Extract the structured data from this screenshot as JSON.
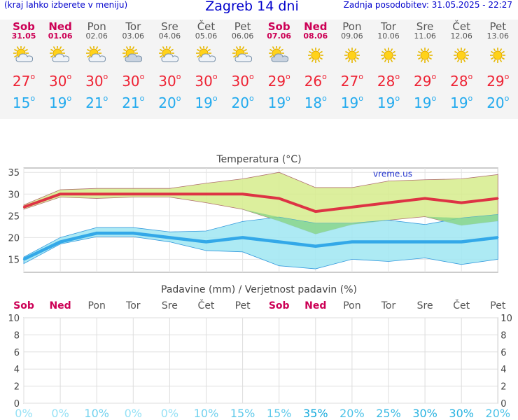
{
  "header": {
    "menu_hint": "(kraj lahko izberete v meniju)",
    "title": "Zagreb 14 dni",
    "updated": "Zadnja posodobitev: 31.05.2025 - 22:27"
  },
  "days": [
    {
      "name": "Sob",
      "date": "31.05",
      "weekend": true,
      "icon": "partly-cloudy-sun-icon",
      "max": "27",
      "min": "15",
      "rain_prob": "0%"
    },
    {
      "name": "Ned",
      "date": "01.06",
      "weekend": true,
      "icon": "partly-cloudy-sun-icon",
      "max": "30",
      "min": "19",
      "rain_prob": "0%"
    },
    {
      "name": "Pon",
      "date": "02.06",
      "weekend": false,
      "icon": "partly-cloudy-sun-icon",
      "max": "30",
      "min": "21",
      "rain_prob": "10%"
    },
    {
      "name": "Tor",
      "date": "03.06",
      "weekend": false,
      "icon": "cloudy-sun-icon",
      "max": "30",
      "min": "21",
      "rain_prob": "0%"
    },
    {
      "name": "Sre",
      "date": "04.06",
      "weekend": false,
      "icon": "partly-cloudy-sun-icon",
      "max": "30",
      "min": "20",
      "rain_prob": "0%"
    },
    {
      "name": "Čet",
      "date": "05.06",
      "weekend": false,
      "icon": "partly-cloudy-sun-icon",
      "max": "30",
      "min": "19",
      "rain_prob": "10%"
    },
    {
      "name": "Pet",
      "date": "06.06",
      "weekend": false,
      "icon": "partly-cloudy-sun-icon",
      "max": "30",
      "min": "20",
      "rain_prob": "15%"
    },
    {
      "name": "Sob",
      "date": "07.06",
      "weekend": true,
      "icon": "cloudy-sun-icon",
      "max": "29",
      "min": "19",
      "rain_prob": "15%"
    },
    {
      "name": "Ned",
      "date": "08.06",
      "weekend": true,
      "icon": "sun-icon",
      "max": "26",
      "min": "18",
      "rain_prob": "35%"
    },
    {
      "name": "Pon",
      "date": "09.06",
      "weekend": false,
      "icon": "sun-icon",
      "max": "27",
      "min": "19",
      "rain_prob": "20%"
    },
    {
      "name": "Tor",
      "date": "10.06",
      "weekend": false,
      "icon": "sun-icon",
      "max": "28",
      "min": "19",
      "rain_prob": "25%"
    },
    {
      "name": "Sre",
      "date": "11.06",
      "weekend": false,
      "icon": "sun-icon",
      "max": "29",
      "min": "19",
      "rain_prob": "30%"
    },
    {
      "name": "Čet",
      "date": "12.06",
      "weekend": false,
      "icon": "sun-icon",
      "max": "28",
      "min": "19",
      "rain_prob": "30%"
    },
    {
      "name": "Pet",
      "date": "13.06",
      "weekend": false,
      "icon": "sun-icon",
      "max": "29",
      "min": "20",
      "rain_prob": "20%"
    }
  ],
  "colors": {
    "title_blue": "#0000cc",
    "weekend": "#cc0055",
    "max_temp": "#ee2233",
    "min_temp": "#22aaee",
    "max_line": "#dd3344",
    "max_band": "#d6ec8c",
    "min_line": "#33a8e8",
    "min_band": "#9fe6f2",
    "overlap": "#88d488"
  },
  "chart_data": [
    {
      "type": "line",
      "title": "Temperatura (°C)",
      "watermark": "vreme.us",
      "ylim": [
        12,
        36
      ],
      "yticks": [
        15,
        20,
        25,
        30,
        35
      ],
      "categories": [
        "31.05",
        "01.06",
        "02.06",
        "03.06",
        "04.06",
        "05.06",
        "06.06",
        "07.06",
        "08.06",
        "09.06",
        "10.06",
        "11.06",
        "12.06",
        "13.06"
      ],
      "grid": true,
      "series": [
        {
          "role": "max",
          "values": [
            27,
            30,
            30,
            30,
            30,
            30,
            30,
            29,
            26,
            27,
            28,
            29,
            28,
            29
          ]
        },
        {
          "role": "max_range_high",
          "values": [
            27.5,
            31,
            31.3,
            31.3,
            31.3,
            32.5,
            33.5,
            35,
            31.5,
            31.5,
            33,
            33.3,
            33.5,
            34.5
          ]
        },
        {
          "role": "max_range_low",
          "values": [
            26.5,
            29.3,
            29,
            29.3,
            29.3,
            28,
            26.5,
            23.8,
            20.8,
            23,
            24,
            24.8,
            22.8,
            23.8
          ]
        },
        {
          "role": "min",
          "values": [
            15,
            19,
            21,
            21,
            20,
            19,
            20,
            19,
            18,
            19,
            19,
            19,
            19,
            20
          ]
        },
        {
          "role": "min_range_high",
          "values": [
            15.5,
            20,
            22.3,
            22.3,
            21.3,
            21.5,
            23.7,
            24.7,
            23.3,
            23.3,
            24,
            23,
            24.5,
            25.3
          ]
        },
        {
          "role": "min_range_low",
          "values": [
            14,
            18.5,
            20.2,
            20.2,
            19,
            17,
            16.7,
            13.5,
            12.8,
            15,
            14.5,
            15.3,
            13.8,
            15
          ]
        }
      ]
    },
    {
      "type": "bar",
      "title": "Padavine (mm) / Verjetnost padavin (%)",
      "ylim": [
        0,
        10
      ],
      "yticks": [
        0,
        2,
        4,
        6,
        8,
        10
      ],
      "categories": [
        "Sob",
        "Ned",
        "Pon",
        "Tor",
        "Sre",
        "Čet",
        "Pet",
        "Sob",
        "Ned",
        "Pon",
        "Tor",
        "Sre",
        "Čet",
        "Pet"
      ],
      "values": [
        0,
        0,
        0,
        0,
        0,
        0,
        0,
        0,
        0,
        0,
        0,
        0,
        0,
        0
      ],
      "probability": [
        "0%",
        "0%",
        "10%",
        "0%",
        "0%",
        "10%",
        "15%",
        "15%",
        "35%",
        "20%",
        "25%",
        "30%",
        "30%",
        "20%"
      ],
      "grid": true
    }
  ]
}
